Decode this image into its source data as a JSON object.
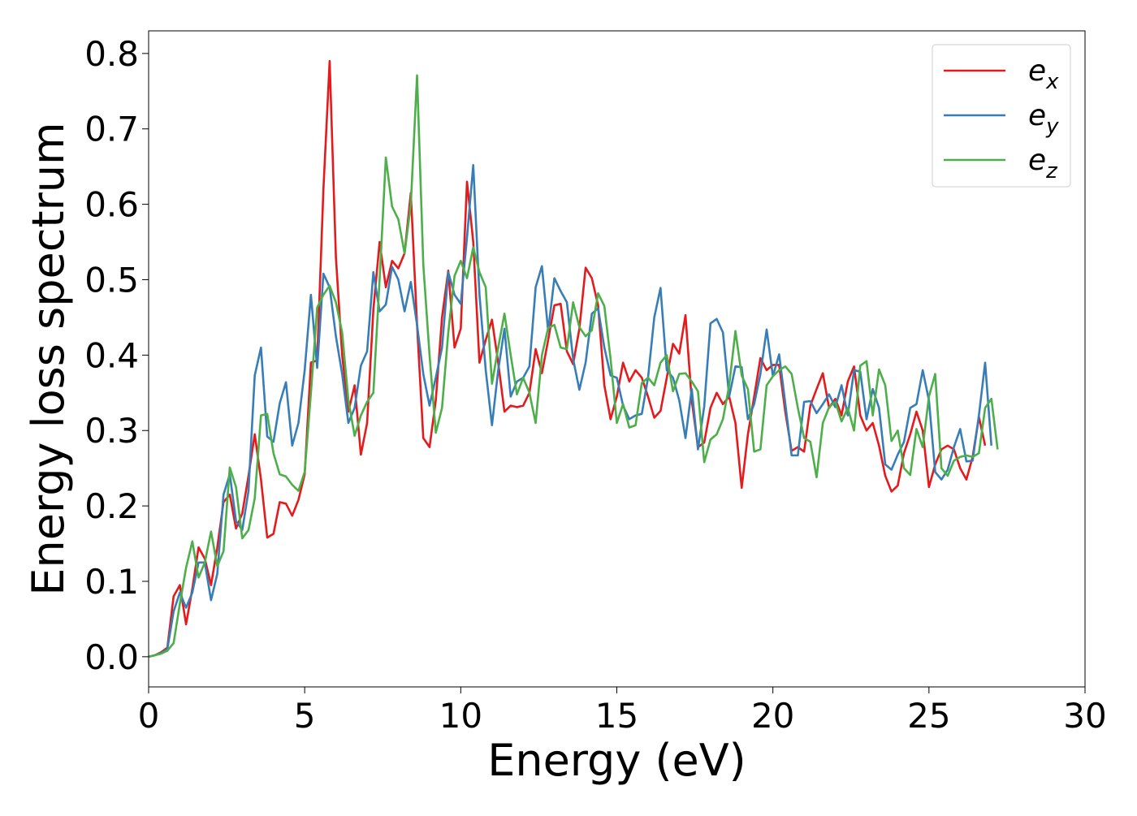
{
  "chart_data": {
    "type": "line",
    "xlabel": "Energy (eV)",
    "ylabel": "Energy loss spectrum",
    "xlim": [
      0,
      30
    ],
    "ylim": [
      -0.04,
      0.83
    ],
    "xticks": [
      0,
      5,
      10,
      15,
      20,
      25,
      30
    ],
    "yticks": [
      0.0,
      0.1,
      0.2,
      0.3,
      0.4,
      0.5,
      0.6,
      0.7,
      0.8
    ],
    "xtick_labels": [
      "0",
      "5",
      "10",
      "15",
      "20",
      "25",
      "30"
    ],
    "ytick_labels": [
      "0.0",
      "0.1",
      "0.2",
      "0.3",
      "0.4",
      "0.5",
      "0.6",
      "0.7",
      "0.8"
    ],
    "grid": false,
    "legend_position": "top-right",
    "x_step": 0.2,
    "series": [
      {
        "name": "e_x",
        "color": "#e41a1c",
        "values": [
          0.0,
          0.002,
          0.006,
          0.012,
          0.08,
          0.095,
          0.043,
          0.09,
          0.145,
          0.13,
          0.095,
          0.145,
          0.205,
          0.215,
          0.17,
          0.19,
          0.24,
          0.295,
          0.235,
          0.158,
          0.163,
          0.205,
          0.203,
          0.187,
          0.208,
          0.242,
          0.39,
          0.393,
          0.62,
          0.79,
          0.53,
          0.4,
          0.325,
          0.36,
          0.268,
          0.31,
          0.46,
          0.55,
          0.49,
          0.525,
          0.515,
          0.535,
          0.615,
          0.44,
          0.29,
          0.278,
          0.34,
          0.45,
          0.512,
          0.41,
          0.435,
          0.63,
          0.55,
          0.39,
          0.42,
          0.447,
          0.39,
          0.325,
          0.333,
          0.331,
          0.333,
          0.35,
          0.408,
          0.376,
          0.42,
          0.466,
          0.468,
          0.405,
          0.388,
          0.435,
          0.516,
          0.502,
          0.466,
          0.36,
          0.315,
          0.345,
          0.39,
          0.365,
          0.38,
          0.37,
          0.345,
          0.317,
          0.326,
          0.37,
          0.415,
          0.402,
          0.453,
          0.34,
          0.278,
          0.284,
          0.33,
          0.35,
          0.335,
          0.345,
          0.31,
          0.224,
          0.295,
          0.345,
          0.396,
          0.38,
          0.387,
          0.387,
          0.324,
          0.273,
          0.278,
          0.272,
          0.333,
          0.355,
          0.376,
          0.33,
          0.342,
          0.32,
          0.365,
          0.385,
          0.32,
          0.3,
          0.31,
          0.28,
          0.24,
          0.219,
          0.227,
          0.27,
          0.295,
          0.325,
          0.3,
          0.225,
          0.255,
          0.275,
          0.28,
          0.275,
          0.25,
          0.235,
          0.265,
          0.318,
          0.28
        ]
      },
      {
        "name": "e_y",
        "color": "#377eb8",
        "values": [
          0.0,
          0.002,
          0.005,
          0.01,
          0.06,
          0.085,
          0.065,
          0.085,
          0.125,
          0.125,
          0.075,
          0.11,
          0.215,
          0.242,
          0.18,
          0.168,
          0.22,
          0.373,
          0.41,
          0.292,
          0.285,
          0.336,
          0.364,
          0.28,
          0.31,
          0.38,
          0.48,
          0.383,
          0.508,
          0.49,
          0.425,
          0.375,
          0.31,
          0.33,
          0.386,
          0.405,
          0.51,
          0.458,
          0.467,
          0.517,
          0.5,
          0.458,
          0.497,
          0.44,
          0.375,
          0.333,
          0.37,
          0.41,
          0.51,
          0.48,
          0.468,
          0.556,
          0.652,
          0.48,
          0.38,
          0.307,
          0.38,
          0.435,
          0.345,
          0.365,
          0.37,
          0.385,
          0.49,
          0.518,
          0.432,
          0.502,
          0.485,
          0.47,
          0.395,
          0.354,
          0.39,
          0.455,
          0.462,
          0.41,
          0.373,
          0.37,
          0.333,
          0.315,
          0.32,
          0.322,
          0.37,
          0.45,
          0.489,
          0.38,
          0.37,
          0.34,
          0.29,
          0.355,
          0.275,
          0.332,
          0.442,
          0.448,
          0.43,
          0.345,
          0.385,
          0.384,
          0.315,
          0.335,
          0.375,
          0.434,
          0.372,
          0.401,
          0.335,
          0.267,
          0.267,
          0.338,
          0.339,
          0.323,
          0.335,
          0.348,
          0.331,
          0.36,
          0.32,
          0.38,
          0.378,
          0.315,
          0.355,
          0.33,
          0.255,
          0.248,
          0.268,
          0.285,
          0.33,
          0.335,
          0.38,
          0.34,
          0.245,
          0.235,
          0.248,
          0.278,
          0.302,
          0.259,
          0.26,
          0.32,
          0.39,
          0.28
        ]
      },
      {
        "name": "e_z",
        "color": "#4daf4a",
        "values": [
          0.0,
          0.002,
          0.004,
          0.008,
          0.018,
          0.07,
          0.118,
          0.153,
          0.105,
          0.125,
          0.166,
          0.12,
          0.14,
          0.251,
          0.225,
          0.157,
          0.168,
          0.21,
          0.32,
          0.322,
          0.27,
          0.242,
          0.239,
          0.228,
          0.22,
          0.245,
          0.35,
          0.463,
          0.48,
          0.492,
          0.47,
          0.43,
          0.34,
          0.293,
          0.32,
          0.338,
          0.35,
          0.5,
          0.662,
          0.597,
          0.58,
          0.535,
          0.6,
          0.771,
          0.52,
          0.4,
          0.297,
          0.33,
          0.43,
          0.505,
          0.525,
          0.502,
          0.543,
          0.51,
          0.49,
          0.362,
          0.41,
          0.455,
          0.4,
          0.348,
          0.37,
          0.35,
          0.31,
          0.4,
          0.436,
          0.44,
          0.41,
          0.408,
          0.47,
          0.437,
          0.425,
          0.433,
          0.482,
          0.465,
          0.395,
          0.31,
          0.335,
          0.304,
          0.307,
          0.363,
          0.37,
          0.36,
          0.39,
          0.4,
          0.352,
          0.375,
          0.376,
          0.365,
          0.352,
          0.258,
          0.288,
          0.295,
          0.315,
          0.36,
          0.432,
          0.373,
          0.355,
          0.272,
          0.275,
          0.36,
          0.372,
          0.38,
          0.385,
          0.375,
          0.33,
          0.29,
          0.285,
          0.238,
          0.31,
          0.331,
          0.338,
          0.312,
          0.33,
          0.3,
          0.386,
          0.392,
          0.32,
          0.381,
          0.36,
          0.286,
          0.3,
          0.25,
          0.241,
          0.302,
          0.278,
          0.345,
          0.375,
          0.25,
          0.24,
          0.26,
          0.265,
          0.267,
          0.265,
          0.27,
          0.33,
          0.342,
          0.275
        ]
      }
    ]
  }
}
